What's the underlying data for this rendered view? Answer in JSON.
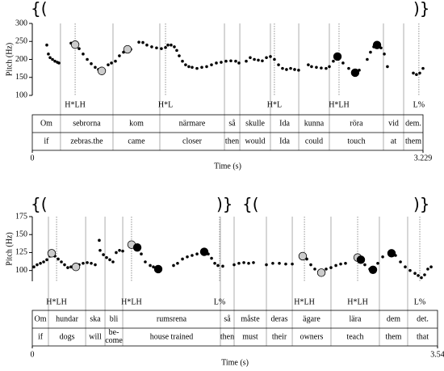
{
  "chart_data": [
    {
      "type": "scatter",
      "ylabel": "Pitch (Hz)",
      "xlabel": "Time (s)",
      "xlim": [
        0,
        3.229
      ],
      "ylim": [
        100,
        300
      ],
      "xticks": [
        0,
        3.229
      ],
      "yticks": [
        100,
        150,
        200,
        250,
        300
      ],
      "annotations": [
        "{(",
        ")}"
      ],
      "series": [
        {
          "color": "#000000",
          "x": [
            0.12,
            0.133,
            0.147,
            0.167,
            0.187,
            0.207,
            0.22,
            0.32,
            0.387,
            0.42,
            0.454,
            0.487,
            0.52,
            0.547,
            0.627,
            0.654,
            0.687,
            0.72,
            0.754,
            0.814,
            0.881,
            0.914,
            0.947,
            0.987,
            1.027,
            1.067,
            1.101,
            1.121,
            1.147,
            1.174,
            1.194,
            1.214,
            1.241,
            1.267,
            1.294,
            1.321,
            1.361,
            1.401,
            1.441,
            1.481,
            1.521,
            1.561,
            1.601,
            1.641,
            1.681,
            1.708,
            1.768,
            1.801,
            1.835,
            1.868,
            1.901,
            1.935,
            1.968,
            2.001,
            2.035,
            2.068,
            2.101,
            2.135,
            2.168,
            2.201,
            2.281,
            2.308,
            2.348,
            2.388,
            2.428,
            2.455,
            2.488,
            2.568,
            2.615,
            2.702,
            2.768,
            2.795,
            2.822,
            2.882,
            2.909,
            2.935,
            3.149,
            3.175,
            3.202,
            3.229
          ],
          "values": [
            240,
            215,
            205,
            200,
            195,
            192,
            190,
            245,
            230,
            215,
            200,
            188,
            178,
            172,
            185,
            190,
            195,
            210,
            220,
            228,
            248,
            247,
            240,
            235,
            232,
            230,
            233,
            240,
            240,
            235,
            225,
            210,
            195,
            185,
            180,
            178,
            175,
            178,
            180,
            185,
            190,
            192,
            195,
            196,
            195,
            190,
            195,
            205,
            200,
            198,
            196,
            205,
            208,
            200,
            185,
            175,
            172,
            175,
            172,
            170,
            185,
            180,
            178,
            176,
            175,
            180,
            195,
            190,
            175,
            170,
            200,
            220,
            235,
            232,
            215,
            180,
            162,
            158,
            162,
            175
          ]
        },
        {
          "color": "#cccccc",
          "x": [
            0.354,
            0.574,
            0.787
          ],
          "values": [
            241,
            168,
            228
          ]
        },
        {
          "color": "#000000",
          "x": [
            2.522,
            2.668,
            2.849
          ],
          "values": [
            208,
            163,
            240
          ]
        }
      ],
      "tones": {
        "labels": [
          "H*LH",
          "H*L",
          "H*L",
          "H*LH",
          "L%"
        ],
        "x": [
          0.354,
          1.101,
          2.001,
          2.535,
          3.195
        ]
      },
      "words": {
        "swedish": [
          "Om",
          "sebrorna",
          "kom",
          "närmare",
          "så",
          "skulle",
          "Ida",
          "kunna",
          "röra",
          "vid",
          "dem."
        ],
        "english": [
          "if",
          "zebras.the",
          "came",
          "closer",
          "then",
          "would",
          "Ida",
          "could",
          "touch",
          "at",
          "them"
        ],
        "boundaries": [
          0.233,
          0.667,
          1.054,
          1.588,
          1.715,
          1.968,
          2.202,
          2.455,
          2.902,
          3.069
        ]
      }
    },
    {
      "type": "scatter",
      "ylabel": "Pitch (Hz)",
      "xlabel": "Time (s)",
      "xlim": [
        0,
        3.54
      ],
      "ylim": [
        85,
        175
      ],
      "xticks": [
        0,
        3.54
      ],
      "yticks": [
        100,
        125,
        150,
        175
      ],
      "annotations": [
        "{(",
        ")}",
        "{(",
        ")}"
      ],
      "series": [
        {
          "color": "#000000",
          "x": [
            0.014,
            0.042,
            0.071,
            0.099,
            0.127,
            0.155,
            0.197,
            0.226,
            0.254,
            0.282,
            0.31,
            0.338,
            0.409,
            0.444,
            0.48,
            0.515,
            0.55,
            0.585,
            0.592,
            0.621,
            0.649,
            0.677,
            0.705,
            0.733,
            0.762,
            0.79,
            0.952,
            0.987,
            1.03,
            1.058,
            1.234,
            1.269,
            1.312,
            1.354,
            1.396,
            1.439,
            1.481,
            1.537,
            1.566,
            1.594,
            1.622,
            1.664,
            1.763,
            1.805,
            1.848,
            1.89,
            1.932,
            2.045,
            2.101,
            2.158,
            2.214,
            2.271,
            2.398,
            2.433,
            2.468,
            2.503,
            2.567,
            2.609,
            2.652,
            2.694,
            2.736,
            2.905,
            2.948,
            3.018,
            3.061,
            3.173,
            3.216,
            3.258,
            3.3,
            3.343,
            3.371,
            3.399,
            3.427,
            3.455,
            3.484
          ],
          "values": [
            105,
            108,
            110,
            112,
            115,
            120,
            120,
            116,
            112,
            108,
            104,
            105,
            108,
            110,
            111,
            110,
            108,
            142,
            128,
            122,
            118,
            115,
            112,
            125,
            128,
            127,
            123,
            112,
            107,
            105,
            107,
            110,
            116,
            119,
            121,
            123,
            126,
            123,
            117,
            110,
            107,
            106,
            108,
            110,
            111,
            110,
            111,
            108,
            110,
            110,
            109,
            109,
            116,
            108,
            102,
            98,
            102,
            104,
            107,
            109,
            110,
            108,
            102,
            110,
            119,
            121,
            112,
            105,
            100,
            96,
            93,
            90,
            94,
            102,
            105
          ]
        },
        {
          "color": "#cccccc",
          "x": [
            0.169,
            0.381,
            0.867,
            2.362,
            2.525,
            2.842
          ],
          "values": [
            124,
            105,
            136,
            120,
            97,
            118
          ]
        },
        {
          "color": "#000000",
          "x": [
            0.917,
            1.1,
            1.502,
            2.87,
            2.976,
            3.138
          ],
          "values": [
            132,
            102,
            126,
            115,
            101,
            124
          ]
        }
      ],
      "tones": {
        "labels": [
          "H*LH",
          "H*LH",
          "L%",
          "H*LH",
          "H*LH",
          "L%"
        ],
        "x": [
          0.212,
          0.867,
          1.636,
          2.377,
          2.842,
          3.385
        ]
      },
      "words": {
        "swedish": [
          "Om",
          "hundar",
          "ska",
          "bli",
          "rumsrena",
          "så",
          "måste",
          "deras",
          "ägare",
          "lära",
          "dem",
          "det."
        ],
        "english": [
          "if",
          "dogs",
          "will",
          "be-\ncome",
          "house trained",
          "then",
          "must",
          "their",
          "owners",
          "teach",
          "them",
          "that"
        ],
        "boundaries": [
          0.141,
          0.466,
          0.635,
          0.79,
          1.643,
          1.763,
          2.045,
          2.271,
          2.609,
          3.032,
          3.279
        ]
      }
    }
  ]
}
